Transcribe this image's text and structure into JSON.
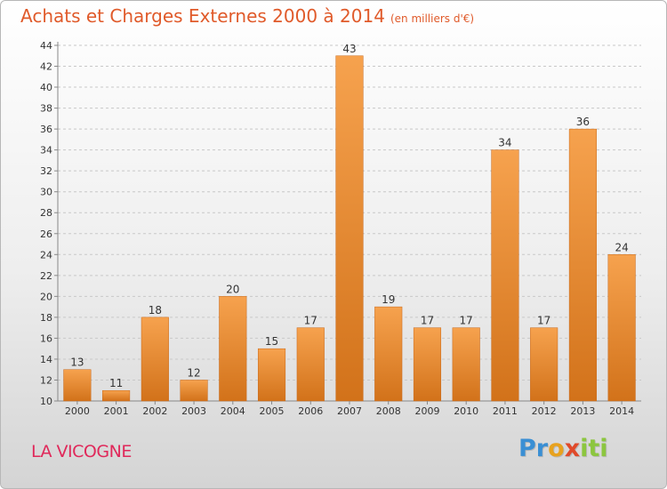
{
  "chart_data": {
    "type": "bar",
    "title": "Achats et Charges Externes 2000 à 2014",
    "unit_note": "(en milliers d'€)",
    "categories": [
      "2000",
      "2001",
      "2002",
      "2003",
      "2004",
      "2005",
      "2006",
      "2007",
      "2008",
      "2009",
      "2010",
      "2011",
      "2012",
      "2013",
      "2014"
    ],
    "values": [
      13,
      11,
      18,
      12,
      20,
      15,
      17,
      43,
      19,
      17,
      17,
      34,
      17,
      36,
      24
    ],
    "ylim": [
      10,
      44
    ],
    "yticks": [
      "10",
      "12",
      "14",
      "16",
      "18",
      "20",
      "22",
      "24",
      "26",
      "28",
      "30",
      "32",
      "34",
      "36",
      "38",
      "40",
      "42",
      "44"
    ],
    "grid": "horizontal dashed",
    "bar_color": "#e8822a"
  },
  "footer": {
    "location": "LA VICOGNE",
    "brand_letters": [
      "P",
      "r",
      "o",
      "x",
      "i",
      "t",
      "i"
    ],
    "brand_colors": [
      "#3a8fd4",
      "#3a8fd4",
      "#e8a21e",
      "#e04a2a",
      "#8cc63f",
      "#8cc63f",
      "#8cc63f"
    ]
  }
}
